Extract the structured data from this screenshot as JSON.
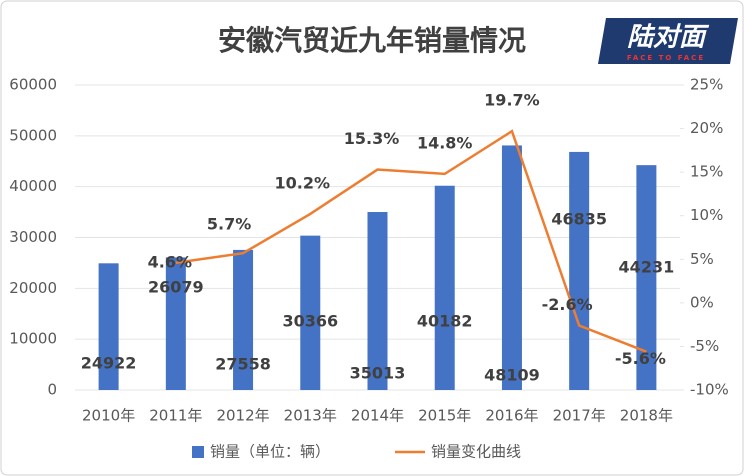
{
  "logo": {
    "name": "陆对面",
    "tagline": "FACE TO FACE"
  },
  "chart_data": {
    "type": "bar-line",
    "title": "安徽汽贸近九年销量情况",
    "categories": [
      "2010年",
      "2011年",
      "2012年",
      "2013年",
      "2014年",
      "2015年",
      "2016年",
      "2017年",
      "2018年"
    ],
    "series": [
      {
        "name": "销量（单位：辆）",
        "type": "bar",
        "color": "#4472c4",
        "values": [
          24922,
          26079,
          27558,
          30366,
          35013,
          40182,
          48109,
          46835,
          44231
        ]
      },
      {
        "name": "销量变化曲线",
        "type": "line",
        "axis": "y2",
        "color": "#ed7d31",
        "values": [
          null,
          4.6,
          5.7,
          10.2,
          15.3,
          14.8,
          19.7,
          -2.6,
          -5.6
        ],
        "value_labels": [
          null,
          "4.6%",
          "5.7%",
          "10.2%",
          "15.3%",
          "14.8%",
          "19.7%",
          "-2.6%",
          "-5.6%"
        ]
      }
    ],
    "ylim": [
      0,
      60000
    ],
    "yticks": [
      0,
      10000,
      20000,
      30000,
      40000,
      50000,
      60000
    ],
    "y2lim": [
      -10,
      25
    ],
    "y2ticks": [
      {
        "value": -10,
        "label": "-10%"
      },
      {
        "value": -5,
        "label": "-5%"
      },
      {
        "value": 0,
        "label": "0%"
      },
      {
        "value": 5,
        "label": "5%"
      },
      {
        "value": 10,
        "label": "10%"
      },
      {
        "value": 15,
        "label": "15%"
      },
      {
        "value": 20,
        "label": "20%"
      },
      {
        "value": 25,
        "label": "25%"
      }
    ],
    "legend": "bottom"
  }
}
